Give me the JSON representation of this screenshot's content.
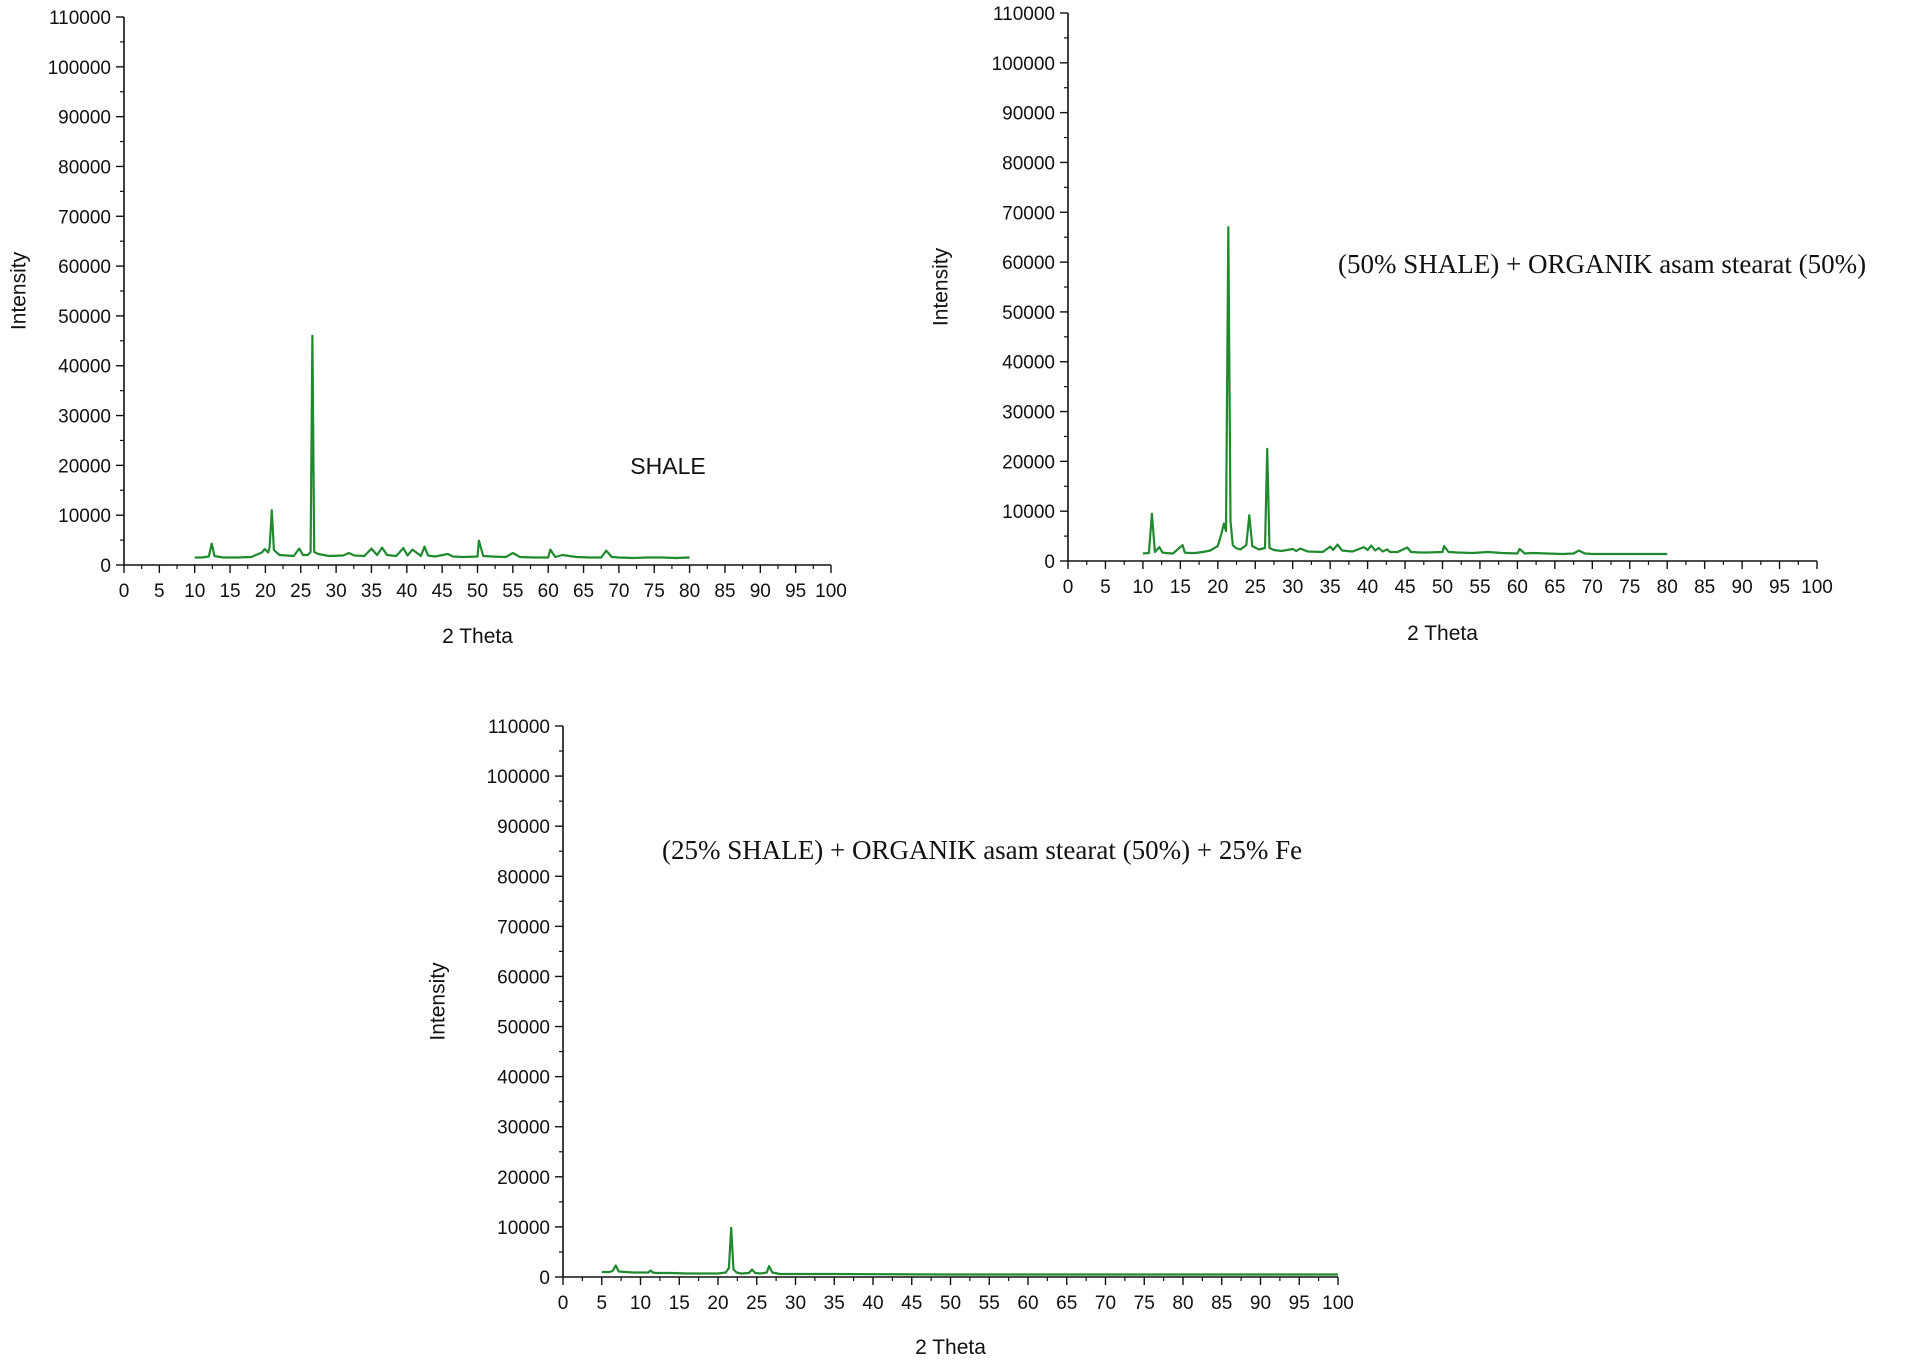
{
  "chart_data": [
    {
      "type": "line",
      "annotation": "SHALE",
      "xlabel": "2 Theta",
      "ylabel": "Intensity",
      "xlim": [
        0,
        100
      ],
      "ylim": [
        0,
        110000
      ],
      "xticks": [
        "0",
        "5",
        "10",
        "15",
        "20",
        "25",
        "30",
        "35",
        "40",
        "45",
        "50",
        "55",
        "60",
        "65",
        "70",
        "75",
        "80",
        "85",
        "90",
        "95",
        "100"
      ],
      "yticks": [
        "0",
        "10000",
        "20000",
        "30000",
        "40000",
        "50000",
        "60000",
        "70000",
        "80000",
        "90000",
        "100000",
        "110000"
      ],
      "color": "#1f8a2e",
      "series": [
        {
          "x": [
            10,
            11,
            12,
            12.4,
            12.8,
            14,
            16,
            18,
            19.5,
            19.9,
            20.4,
            20.6,
            20.9,
            21.2,
            22,
            24,
            24.8,
            25.3,
            26,
            26.4,
            26.65,
            26.9,
            27.5,
            29,
            31,
            31.8,
            32.6,
            34,
            35,
            35.8,
            36.5,
            37.2,
            38.5,
            39.5,
            40.1,
            40.8,
            42,
            42.5,
            43,
            44,
            45.8,
            46.5,
            48,
            50,
            50.2,
            50.8,
            52,
            54,
            55,
            56,
            58,
            60,
            60.3,
            61,
            62,
            64,
            66,
            67.5,
            68.2,
            69,
            70,
            72,
            74,
            76,
            78,
            80
          ],
          "y": [
            1500,
            1500,
            1700,
            4300,
            1800,
            1500,
            1500,
            1600,
            2500,
            3200,
            2500,
            3500,
            11000,
            3000,
            2000,
            1800,
            3300,
            2000,
            2000,
            2600,
            46000,
            2600,
            2200,
            1800,
            1900,
            2400,
            1900,
            1800,
            3300,
            2000,
            3500,
            2000,
            1800,
            3400,
            1900,
            3100,
            1800,
            3700,
            1900,
            1700,
            2200,
            1700,
            1600,
            1700,
            4900,
            1800,
            1700,
            1600,
            2400,
            1600,
            1500,
            1500,
            3100,
            1600,
            2000,
            1600,
            1500,
            1500,
            2900,
            1600,
            1500,
            1400,
            1500,
            1500,
            1400,
            1500
          ]
        }
      ]
    },
    {
      "type": "line",
      "annotation": "(50% SHALE) + ORGANIK asam stearat (50%)",
      "xlabel": "2 Theta",
      "ylabel": "Intensity",
      "xlim": [
        0,
        100
      ],
      "ylim": [
        0,
        110000
      ],
      "xticks": [
        "0",
        "5",
        "10",
        "15",
        "20",
        "25",
        "30",
        "35",
        "40",
        "45",
        "50",
        "55",
        "60",
        "65",
        "70",
        "75",
        "80",
        "85",
        "90",
        "95",
        "100"
      ],
      "yticks": [
        "0",
        "10000",
        "20000",
        "30000",
        "40000",
        "50000",
        "60000",
        "70000",
        "80000",
        "90000",
        "100000",
        "110000"
      ],
      "color": "#1f8a2e",
      "series": [
        {
          "x": [
            10,
            10.8,
            11.2,
            11.6,
            12.2,
            12.6,
            13,
            14,
            15.3,
            15.6,
            16,
            17,
            18,
            19,
            20,
            20.5,
            20.8,
            21.1,
            21.4,
            21.7,
            22,
            22.4,
            23,
            23.8,
            24.2,
            24.6,
            25.5,
            26.3,
            26.6,
            26.9,
            27.5,
            28.5,
            30,
            30.5,
            31,
            32,
            34,
            35,
            35.4,
            36,
            36.6,
            37.2,
            38,
            39.5,
            40,
            40.5,
            41,
            41.5,
            42,
            42.6,
            43,
            44,
            45.3,
            45.8,
            47,
            48,
            50,
            50.2,
            50.8,
            52,
            54,
            55,
            56,
            58,
            60,
            60.3,
            61,
            62,
            64,
            66,
            67.5,
            68.2,
            69,
            70,
            72,
            74,
            76,
            78,
            80
          ],
          "y": [
            1500,
            1600,
            9500,
            1800,
            2800,
            1700,
            1600,
            1500,
            3200,
            1700,
            1600,
            1600,
            1800,
            2100,
            3000,
            5500,
            7500,
            6000,
            67000,
            8000,
            3200,
            2600,
            2300,
            3200,
            9200,
            3000,
            2300,
            2600,
            22500,
            2600,
            2200,
            2000,
            2400,
            2000,
            2500,
            1900,
            1800,
            2900,
            2200,
            3300,
            2100,
            2000,
            1900,
            2800,
            2200,
            3100,
            2100,
            2600,
            1900,
            2300,
            1800,
            1800,
            2700,
            1800,
            1700,
            1700,
            1800,
            3000,
            1800,
            1700,
            1600,
            1700,
            1800,
            1600,
            1500,
            2400,
            1500,
            1600,
            1500,
            1400,
            1500,
            2100,
            1500,
            1400,
            1400,
            1400,
            1400,
            1400,
            1400
          ]
        }
      ]
    },
    {
      "type": "line",
      "annotation": "(25% SHALE) + ORGANIK asam stearat (50%) + 25% Fe",
      "xlabel": "2 Theta",
      "ylabel": "Intensity",
      "xlim": [
        0,
        100
      ],
      "ylim": [
        0,
        110000
      ],
      "xticks": [
        "0",
        "5",
        "10",
        "15",
        "20",
        "25",
        "30",
        "35",
        "40",
        "45",
        "50",
        "55",
        "60",
        "65",
        "70",
        "75",
        "80",
        "85",
        "90",
        "95",
        "100"
      ],
      "yticks": [
        "0",
        "10000",
        "20000",
        "30000",
        "40000",
        "50000",
        "60000",
        "70000",
        "80000",
        "90000",
        "100000",
        "110000"
      ],
      "color": "#1f8a2e",
      "series": [
        {
          "x": [
            5,
            6,
            6.4,
            6.8,
            7.2,
            8,
            9,
            10,
            11,
            11.3,
            11.6,
            12,
            14,
            16,
            18,
            20,
            21,
            21.4,
            21.7,
            22,
            22.4,
            23,
            24,
            24.4,
            24.8,
            25.5,
            26.3,
            26.6,
            27,
            28,
            30,
            35,
            40,
            50,
            60,
            70,
            80,
            90,
            100
          ],
          "y": [
            1000,
            1000,
            1200,
            2300,
            1100,
            1000,
            900,
            900,
            900,
            1300,
            900,
            800,
            800,
            700,
            700,
            700,
            900,
            1800,
            9800,
            1500,
            900,
            700,
            800,
            1500,
            800,
            700,
            900,
            2200,
            900,
            600,
            600,
            600,
            550,
            500,
            500,
            500,
            500,
            500,
            500
          ]
        }
      ]
    }
  ]
}
